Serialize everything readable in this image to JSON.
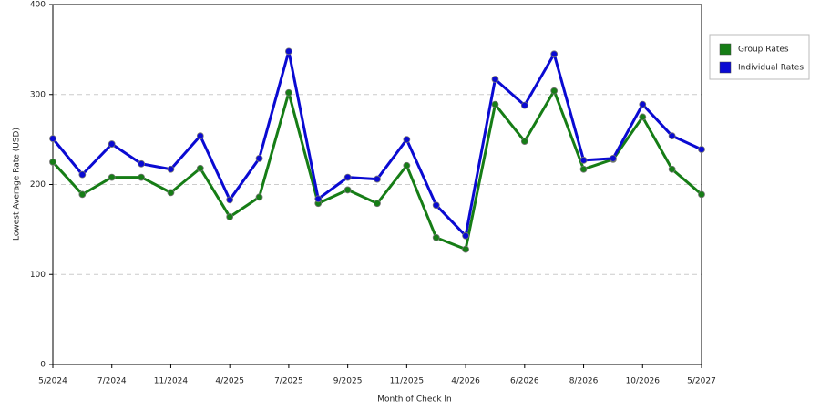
{
  "chart_data": {
    "type": "line",
    "x_label": "Month of Check In",
    "y_label": "Lowest Average Rate (USD)",
    "categories": [
      "5/2024",
      null,
      "7/2024",
      null,
      "11/2024",
      null,
      "4/2025",
      null,
      "7/2025",
      null,
      "9/2025",
      null,
      "11/2025",
      null,
      "4/2026",
      null,
      "6/2026",
      null,
      "8/2026",
      null,
      "10/2026",
      null,
      "5/2027"
    ],
    "series": [
      {
        "name": "Group Rates",
        "color": "#167d16",
        "values": [
          225,
          189,
          208,
          208,
          191,
          218,
          164,
          186,
          302,
          179,
          194,
          179,
          221,
          141,
          128,
          289,
          248,
          304,
          217,
          228,
          275,
          217,
          189
        ]
      },
      {
        "name": "Individual Rates",
        "color": "#0a0ad2",
        "values": [
          251,
          211,
          245,
          223,
          217,
          254,
          183,
          229,
          348,
          184,
          208,
          206,
          250,
          177,
          143,
          317,
          288,
          345,
          227,
          229,
          289,
          254,
          239
        ]
      }
    ],
    "ylim": [
      0,
      400
    ],
    "yticks": [
      0,
      100,
      200,
      300,
      400
    ],
    "grid": true,
    "legend": "right"
  }
}
